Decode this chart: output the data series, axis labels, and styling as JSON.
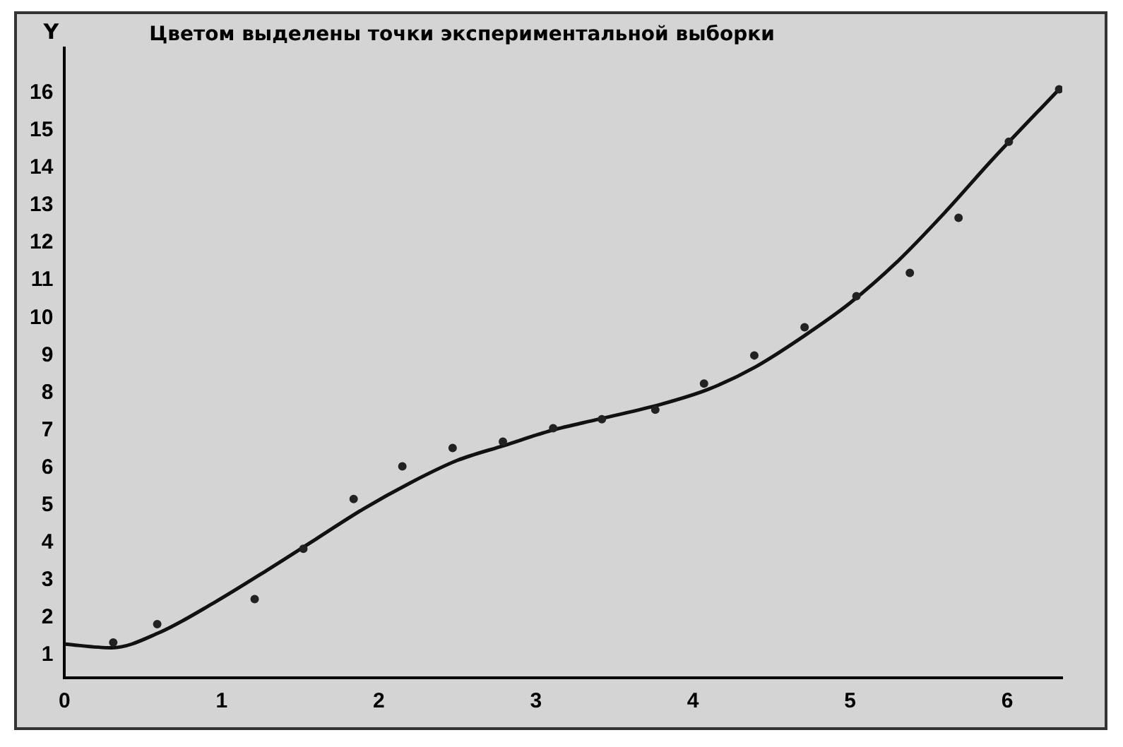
{
  "chart_data": {
    "type": "line",
    "title": "Цветом выделены точки экспериментальной выборки",
    "ylabel": "Y",
    "xlim": [
      0,
      6.35
    ],
    "xticks": [
      0,
      1,
      2,
      3,
      4,
      5,
      6
    ],
    "ylim": [
      0.4,
      17.2
    ],
    "yticks": [
      1,
      2,
      3,
      4,
      5,
      6,
      7,
      8,
      9,
      10,
      11,
      12,
      13,
      14,
      15,
      16
    ],
    "grid": false,
    "legend": false,
    "series": [
      {
        "type": "scatter",
        "color": "#222222",
        "marker": "circle",
        "x": [
          0.31,
          0.59,
          1.21,
          1.52,
          1.84,
          2.15,
          2.47,
          2.79,
          3.11,
          3.42,
          3.76,
          4.07,
          4.39,
          4.71,
          5.04,
          5.38,
          5.69,
          6.01,
          6.33
        ],
        "values": [
          1.34,
          1.83,
          2.5,
          3.84,
          5.17,
          6.04,
          6.53,
          6.7,
          7.06,
          7.3,
          7.55,
          8.25,
          9.0,
          9.75,
          10.58,
          11.2,
          12.67,
          14.7,
          16.1
        ]
      },
      {
        "type": "line",
        "color": "#111111",
        "marker": "none",
        "line_style": "solid",
        "x": [
          0,
          0.3,
          0.6,
          0.95,
          1.3,
          1.6,
          1.9,
          2.2,
          2.5,
          2.8,
          3.1,
          3.4,
          3.8,
          4.1,
          4.4,
          4.7,
          5.0,
          5.3,
          5.6,
          5.9,
          6.33
        ],
        "values": [
          1.3,
          1.2,
          1.6,
          2.4,
          3.3,
          4.1,
          4.9,
          5.6,
          6.2,
          6.6,
          7.0,
          7.3,
          7.7,
          8.1,
          8.7,
          9.5,
          10.4,
          11.5,
          12.8,
          14.2,
          16.1
        ]
      }
    ]
  }
}
